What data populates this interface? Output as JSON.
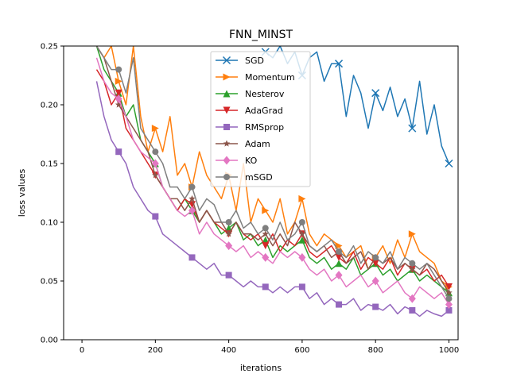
{
  "chart_data": {
    "type": "line",
    "title": "FNN_MINST",
    "xlabel": "iterations",
    "ylabel": "loss values",
    "xlim": [
      -50,
      1025
    ],
    "ylim": [
      0.0,
      0.25
    ],
    "xticks": [
      0,
      200,
      400,
      600,
      800,
      1000
    ],
    "yticks": [
      0.0,
      0.05,
      0.1,
      0.15,
      0.2,
      0.25
    ],
    "xtick_labels": [
      "0",
      "200",
      "400",
      "600",
      "800",
      "1000"
    ],
    "ytick_labels": [
      "0.00",
      "0.05",
      "0.10",
      "0.15",
      "0.20",
      "0.25"
    ],
    "grid": false,
    "legend_position": "top-center",
    "series": [
      {
        "name": "SGD",
        "color": "#1f77b4",
        "marker": "x",
        "x": [
          500,
          520,
          540,
          560,
          580,
          600,
          620,
          640,
          660,
          680,
          700,
          720,
          740,
          760,
          780,
          800,
          820,
          840,
          860,
          880,
          900,
          920,
          940,
          960,
          980,
          1000
        ],
        "y": [
          0.245,
          0.24,
          0.25,
          0.235,
          0.245,
          0.225,
          0.24,
          0.245,
          0.22,
          0.235,
          0.235,
          0.19,
          0.225,
          0.21,
          0.18,
          0.21,
          0.195,
          0.215,
          0.19,
          0.205,
          0.18,
          0.22,
          0.175,
          0.2,
          0.165,
          0.15
        ]
      },
      {
        "name": "Momentum",
        "color": "#ff7f0e",
        "marker": "triangle-right",
        "x": [
          40,
          60,
          80,
          100,
          120,
          140,
          160,
          180,
          200,
          220,
          240,
          260,
          280,
          300,
          320,
          340,
          360,
          380,
          400,
          420,
          440,
          460,
          480,
          500,
          520,
          540,
          560,
          580,
          600,
          620,
          640,
          660,
          680,
          700,
          720,
          740,
          760,
          780,
          800,
          820,
          840,
          860,
          880,
          900,
          920,
          940,
          960,
          980,
          1000
        ],
        "y": [
          0.25,
          0.24,
          0.25,
          0.22,
          0.2,
          0.25,
          0.19,
          0.16,
          0.18,
          0.16,
          0.19,
          0.14,
          0.15,
          0.13,
          0.16,
          0.14,
          0.13,
          0.12,
          0.14,
          0.11,
          0.15,
          0.1,
          0.12,
          0.11,
          0.1,
          0.12,
          0.09,
          0.1,
          0.12,
          0.09,
          0.08,
          0.09,
          0.085,
          0.08,
          0.07,
          0.075,
          0.08,
          0.06,
          0.07,
          0.08,
          0.065,
          0.085,
          0.07,
          0.09,
          0.075,
          0.07,
          0.065,
          0.05,
          0.045
        ]
      },
      {
        "name": "Nesterov",
        "color": "#2ca02c",
        "marker": "triangle-up",
        "x": [
          40,
          60,
          80,
          100,
          120,
          140,
          160,
          180,
          200,
          220,
          240,
          260,
          280,
          300,
          320,
          340,
          360,
          380,
          400,
          420,
          440,
          460,
          480,
          500,
          520,
          540,
          560,
          580,
          600,
          620,
          640,
          660,
          680,
          700,
          720,
          740,
          760,
          780,
          800,
          820,
          840,
          860,
          880,
          900,
          920,
          940,
          960,
          980,
          1000
        ],
        "y": [
          0.25,
          0.23,
          0.22,
          0.21,
          0.19,
          0.2,
          0.17,
          0.16,
          0.15,
          0.13,
          0.12,
          0.11,
          0.12,
          0.11,
          0.1,
          0.11,
          0.1,
          0.09,
          0.095,
          0.1,
          0.085,
          0.09,
          0.08,
          0.085,
          0.07,
          0.08,
          0.075,
          0.08,
          0.085,
          0.07,
          0.065,
          0.07,
          0.06,
          0.065,
          0.06,
          0.07,
          0.055,
          0.06,
          0.065,
          0.055,
          0.06,
          0.05,
          0.055,
          0.06,
          0.05,
          0.055,
          0.05,
          0.045,
          0.04
        ]
      },
      {
        "name": "AdaGrad",
        "color": "#d62728",
        "marker": "triangle-down",
        "x": [
          40,
          60,
          80,
          100,
          120,
          140,
          160,
          180,
          200,
          220,
          240,
          260,
          280,
          300,
          320,
          340,
          360,
          380,
          400,
          420,
          440,
          460,
          480,
          500,
          520,
          540,
          560,
          580,
          600,
          620,
          640,
          660,
          680,
          700,
          720,
          740,
          760,
          780,
          800,
          820,
          840,
          860,
          880,
          900,
          920,
          940,
          960,
          980,
          1000
        ],
        "y": [
          0.23,
          0.22,
          0.2,
          0.21,
          0.18,
          0.17,
          0.16,
          0.15,
          0.14,
          0.13,
          0.12,
          0.11,
          0.12,
          0.115,
          0.1,
          0.11,
          0.1,
          0.095,
          0.09,
          0.1,
          0.09,
          0.085,
          0.09,
          0.08,
          0.09,
          0.075,
          0.085,
          0.08,
          0.09,
          0.075,
          0.07,
          0.075,
          0.08,
          0.07,
          0.065,
          0.075,
          0.06,
          0.07,
          0.065,
          0.06,
          0.07,
          0.055,
          0.065,
          0.06,
          0.055,
          0.06,
          0.05,
          0.055,
          0.045
        ]
      },
      {
        "name": "RMSprop",
        "color": "#9467bd",
        "marker": "square",
        "x": [
          40,
          60,
          80,
          100,
          120,
          140,
          160,
          180,
          200,
          220,
          240,
          260,
          280,
          300,
          320,
          340,
          360,
          380,
          400,
          420,
          440,
          460,
          480,
          500,
          520,
          540,
          560,
          580,
          600,
          620,
          640,
          660,
          680,
          700,
          720,
          740,
          760,
          780,
          800,
          820,
          840,
          860,
          880,
          900,
          920,
          940,
          960,
          980,
          1000
        ],
        "y": [
          0.22,
          0.19,
          0.17,
          0.16,
          0.15,
          0.13,
          0.12,
          0.11,
          0.105,
          0.09,
          0.085,
          0.08,
          0.075,
          0.07,
          0.065,
          0.06,
          0.065,
          0.055,
          0.055,
          0.05,
          0.045,
          0.05,
          0.045,
          0.045,
          0.04,
          0.045,
          0.04,
          0.045,
          0.045,
          0.035,
          0.04,
          0.03,
          0.035,
          0.03,
          0.03,
          0.035,
          0.025,
          0.03,
          0.028,
          0.025,
          0.03,
          0.022,
          0.028,
          0.025,
          0.02,
          0.025,
          0.022,
          0.02,
          0.025
        ]
      },
      {
        "name": "Adam",
        "color": "#8c564b",
        "marker": "star",
        "x": [
          40,
          60,
          80,
          100,
          120,
          140,
          160,
          180,
          200,
          220,
          240,
          260,
          280,
          300,
          320,
          340,
          360,
          380,
          400,
          420,
          440,
          460,
          480,
          500,
          520,
          540,
          560,
          580,
          600,
          620,
          640,
          660,
          680,
          700,
          720,
          740,
          760,
          780,
          800,
          820,
          840,
          860,
          880,
          900,
          920,
          940,
          960,
          980,
          1000
        ],
        "y": [
          0.25,
          0.24,
          0.22,
          0.2,
          0.19,
          0.18,
          0.17,
          0.16,
          0.14,
          0.13,
          0.12,
          0.12,
          0.11,
          0.12,
          0.1,
          0.11,
          0.1,
          0.1,
          0.09,
          0.1,
          0.09,
          0.09,
          0.085,
          0.09,
          0.08,
          0.09,
          0.08,
          0.1,
          0.09,
          0.08,
          0.075,
          0.08,
          0.07,
          0.075,
          0.065,
          0.07,
          0.075,
          0.06,
          0.07,
          0.065,
          0.07,
          0.06,
          0.065,
          0.06,
          0.055,
          0.065,
          0.06,
          0.05,
          0.04
        ]
      },
      {
        "name": "KO",
        "color": "#e377c2",
        "marker": "diamond",
        "x": [
          40,
          60,
          80,
          100,
          120,
          140,
          160,
          180,
          200,
          220,
          240,
          260,
          280,
          300,
          320,
          340,
          360,
          380,
          400,
          420,
          440,
          460,
          480,
          500,
          520,
          540,
          560,
          580,
          600,
          620,
          640,
          660,
          680,
          700,
          720,
          740,
          760,
          780,
          800,
          820,
          840,
          860,
          880,
          900,
          920,
          940,
          960,
          980,
          1000
        ],
        "y": [
          0.24,
          0.22,
          0.21,
          0.205,
          0.19,
          0.17,
          0.16,
          0.155,
          0.15,
          0.13,
          0.12,
          0.11,
          0.105,
          0.11,
          0.09,
          0.1,
          0.09,
          0.085,
          0.08,
          0.075,
          0.08,
          0.07,
          0.075,
          0.07,
          0.065,
          0.075,
          0.07,
          0.075,
          0.07,
          0.06,
          0.055,
          0.06,
          0.05,
          0.055,
          0.045,
          0.05,
          0.055,
          0.045,
          0.05,
          0.04,
          0.045,
          0.05,
          0.04,
          0.035,
          0.045,
          0.04,
          0.035,
          0.04,
          0.03
        ]
      },
      {
        "name": "mSGD",
        "color": "#7f7f7f",
        "marker": "circle",
        "x": [
          40,
          60,
          80,
          100,
          120,
          140,
          160,
          180,
          200,
          220,
          240,
          260,
          280,
          300,
          320,
          340,
          360,
          380,
          400,
          420,
          440,
          460,
          480,
          500,
          520,
          540,
          560,
          580,
          600,
          620,
          640,
          660,
          680,
          700,
          720,
          740,
          760,
          780,
          800,
          820,
          840,
          860,
          880,
          900,
          920,
          940,
          960,
          980,
          1000
        ],
        "y": [
          0.25,
          0.24,
          0.23,
          0.23,
          0.21,
          0.24,
          0.18,
          0.17,
          0.16,
          0.15,
          0.13,
          0.13,
          0.12,
          0.13,
          0.11,
          0.12,
          0.115,
          0.1,
          0.1,
          0.11,
          0.095,
          0.1,
          0.09,
          0.095,
          0.085,
          0.1,
          0.085,
          0.09,
          0.1,
          0.08,
          0.075,
          0.08,
          0.085,
          0.075,
          0.07,
          0.08,
          0.065,
          0.075,
          0.07,
          0.065,
          0.075,
          0.06,
          0.07,
          0.065,
          0.06,
          0.065,
          0.055,
          0.045,
          0.035
        ]
      }
    ]
  }
}
